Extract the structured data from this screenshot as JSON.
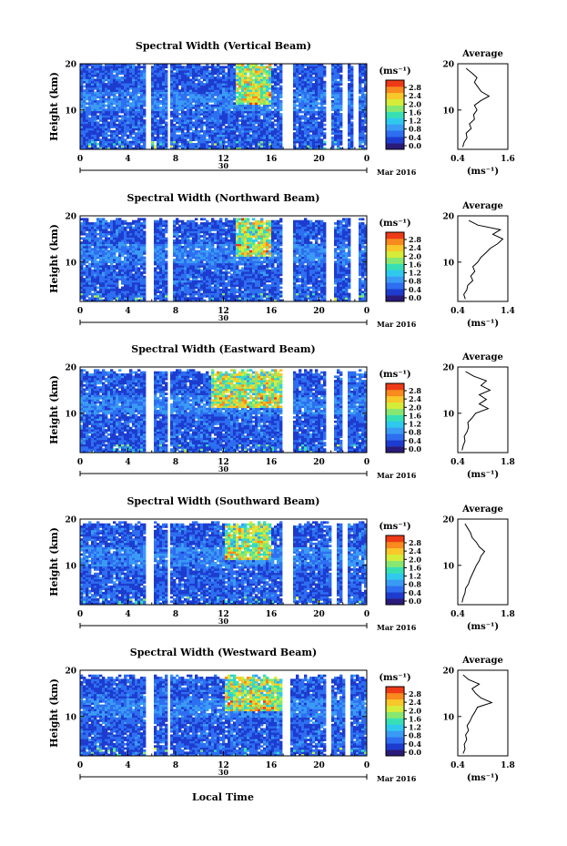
{
  "figure": {
    "xlabel": "Local Time",
    "date_label": "Mar 2016",
    "day_label": "30"
  },
  "colors": {
    "scale": [
      "#2a1a7a",
      "#1d3ccf",
      "#2e6ef0",
      "#3a9bf5",
      "#2fc9ee",
      "#37e0b4",
      "#86e870",
      "#d6ec3a",
      "#f8c72a",
      "#f88a1e",
      "#ee3a16"
    ],
    "missing": "#ffffff"
  },
  "chart_data": [
    {
      "type": "heatmap",
      "title": "Spectral Width (Vertical Beam)",
      "ylabel": "Height (km)",
      "xlim": [
        0,
        24
      ],
      "ylim": [
        1.5,
        20
      ],
      "xticks": [
        "0",
        "4",
        "8",
        "12",
        "16",
        "20",
        "0"
      ],
      "yticks": [
        "10",
        "20"
      ],
      "colorbar": {
        "unit": "(ms⁻¹)",
        "ticks": [
          "0.0",
          "0.4",
          "0.8",
          "1.2",
          "1.6",
          "2.0",
          "2.4",
          "2.8"
        ]
      },
      "gaps": [
        [
          5.6,
          5.85
        ],
        [
          7.2,
          7.55
        ],
        [
          17.0,
          17.8
        ],
        [
          20.5,
          21.0
        ],
        [
          22.0,
          22.4
        ],
        [
          22.8,
          23.2
        ]
      ],
      "top_km": 19.5,
      "bright_km": [
        13,
        16
      ]
    },
    {
      "type": "heatmap",
      "title": "Spectral Width (Northward Beam)",
      "ylabel": "Height (km)",
      "xlim": [
        0,
        24
      ],
      "ylim": [
        1.5,
        20
      ],
      "xticks": [
        "0",
        "4",
        "8",
        "12",
        "16",
        "20",
        "0"
      ],
      "yticks": [
        "10",
        "20"
      ],
      "colorbar": {
        "unit": "(ms⁻¹)",
        "ticks": [
          "0.0",
          "0.4",
          "0.8",
          "1.2",
          "1.6",
          "2.0",
          "2.4",
          "2.8"
        ]
      },
      "gaps": [
        [
          5.6,
          6.1
        ],
        [
          7.3,
          7.7
        ],
        [
          17.0,
          17.8
        ],
        [
          20.5,
          21.2
        ],
        [
          22.6,
          23.2
        ]
      ],
      "top_km": 18.5,
      "bright_km": [
        13,
        16
      ]
    },
    {
      "type": "heatmap",
      "title": "Spectral Width (Eastward Beam)",
      "ylabel": "Height (km)",
      "xlim": [
        0,
        24
      ],
      "ylim": [
        1.5,
        20
      ],
      "xticks": [
        "0",
        "4",
        "8",
        "12",
        "16",
        "20",
        "0"
      ],
      "yticks": [
        "10",
        "20"
      ],
      "colorbar": {
        "unit": "(ms⁻¹)",
        "ticks": [
          "0.0",
          "0.4",
          "0.8",
          "1.2",
          "1.6",
          "2.0",
          "2.4",
          "2.8"
        ]
      },
      "gaps": [
        [
          5.6,
          6.2
        ],
        [
          7.3,
          7.6
        ],
        [
          17.0,
          17.8
        ],
        [
          20.6,
          21.2
        ],
        [
          22.0,
          22.4
        ]
      ],
      "top_km": 18.5,
      "bright_km": [
        11,
        17
      ]
    },
    {
      "type": "heatmap",
      "title": "Spectral Width (Southward Beam)",
      "ylabel": "Height (km)",
      "xlim": [
        0,
        24
      ],
      "ylim": [
        1.5,
        20
      ],
      "xticks": [
        "0",
        "4",
        "8",
        "12",
        "16",
        "20",
        "0"
      ],
      "yticks": [
        "10",
        "20"
      ],
      "colorbar": {
        "unit": "(ms⁻¹)",
        "ticks": [
          "0.0",
          "0.4",
          "0.8",
          "1.2",
          "1.6",
          "2.0",
          "2.4",
          "2.8"
        ]
      },
      "gaps": [
        [
          5.6,
          6.2
        ],
        [
          7.3,
          7.6
        ],
        [
          17.0,
          17.8
        ],
        [
          21.0,
          21.4
        ],
        [
          22.0,
          22.4
        ]
      ],
      "top_km": 18.5,
      "bright_km": [
        12,
        16
      ]
    },
    {
      "type": "heatmap",
      "title": "Spectral Width (Westward Beam)",
      "ylabel": "Height (km)",
      "xlim": [
        0,
        24
      ],
      "ylim": [
        1.5,
        20
      ],
      "xticks": [
        "0",
        "4",
        "8",
        "12",
        "16",
        "20",
        "0"
      ],
      "yticks": [
        "10",
        "20"
      ],
      "colorbar": {
        "unit": "(ms⁻¹)",
        "ticks": [
          "0.0",
          "0.4",
          "0.8",
          "1.2",
          "1.6",
          "2.0",
          "2.4",
          "2.8"
        ]
      },
      "gaps": [
        [
          5.6,
          6.1
        ],
        [
          7.3,
          7.6
        ],
        [
          17.0,
          17.7
        ],
        [
          20.6,
          21.1
        ],
        [
          22.2,
          22.6
        ]
      ],
      "top_km": 18.0,
      "bright_km": [
        12,
        17
      ]
    },
    {
      "type": "line",
      "title": "Average",
      "xlabel": "(ms⁻¹)",
      "xlim": [
        0.4,
        1.6
      ],
      "ylim": [
        1.5,
        20
      ],
      "xticks": [
        "0.4",
        "1.6"
      ],
      "yticks": [
        "10",
        "20"
      ],
      "height": [
        2,
        3,
        4,
        5,
        6,
        7,
        8,
        9,
        10,
        11,
        12,
        13,
        14,
        15,
        16,
        17,
        18,
        19
      ],
      "width": [
        0.52,
        0.55,
        0.62,
        0.6,
        0.72,
        0.68,
        0.8,
        0.78,
        0.86,
        0.8,
        0.95,
        1.15,
        0.96,
        0.88,
        0.8,
        0.86,
        0.74,
        0.6
      ]
    },
    {
      "type": "line",
      "title": "Average",
      "xlabel": "(ms⁻¹)",
      "xlim": [
        0.4,
        1.4
      ],
      "ylim": [
        1.5,
        20
      ],
      "xticks": [
        "0.4",
        "1.4"
      ],
      "yticks": [
        "10",
        "20"
      ],
      "height": [
        2,
        3,
        4,
        5,
        6,
        7,
        8,
        9,
        10,
        11,
        12,
        13,
        14,
        15,
        16,
        17,
        18,
        19
      ],
      "width": [
        0.55,
        0.52,
        0.58,
        0.6,
        0.7,
        0.66,
        0.74,
        0.7,
        0.8,
        0.86,
        0.96,
        1.05,
        1.2,
        1.3,
        1.1,
        1.25,
        0.8,
        0.62
      ]
    },
    {
      "type": "line",
      "title": "Average",
      "xlabel": "(ms⁻¹)",
      "xlim": [
        0.4,
        1.8
      ],
      "ylim": [
        1.5,
        20
      ],
      "xticks": [
        "0.4",
        "1.8"
      ],
      "yticks": [
        "10",
        "20"
      ],
      "height": [
        2,
        3,
        4,
        5,
        6,
        7,
        8,
        9,
        10,
        11,
        12,
        13,
        14,
        15,
        16,
        17,
        18,
        19
      ],
      "width": [
        0.52,
        0.55,
        0.6,
        0.58,
        0.66,
        0.7,
        0.68,
        0.8,
        0.9,
        1.25,
        1.0,
        1.2,
        1.0,
        1.3,
        1.05,
        1.2,
        0.85,
        0.62
      ]
    },
    {
      "type": "line",
      "title": "Average",
      "xlabel": "(ms⁻¹)",
      "xlim": [
        0.4,
        1.8
      ],
      "ylim": [
        1.5,
        20
      ],
      "xticks": [
        "0.4",
        "1.8"
      ],
      "yticks": [
        "10",
        "20"
      ],
      "height": [
        2,
        3,
        4,
        5,
        6,
        7,
        8,
        9,
        10,
        11,
        12,
        13,
        14,
        15,
        16,
        17,
        18,
        19
      ],
      "width": [
        0.52,
        0.55,
        0.6,
        0.62,
        0.7,
        0.74,
        0.8,
        0.86,
        0.92,
        1.0,
        1.05,
        1.15,
        1.0,
        0.92,
        0.8,
        0.76,
        0.68,
        0.6
      ]
    },
    {
      "type": "line",
      "title": "Average",
      "xlabel": "(ms⁻¹)",
      "xlim": [
        0.4,
        1.8
      ],
      "ylim": [
        1.5,
        20
      ],
      "xticks": [
        "0.4",
        "1.8"
      ],
      "yticks": [
        "10",
        "20"
      ],
      "height": [
        2,
        3,
        4,
        5,
        6,
        7,
        8,
        9,
        10,
        11,
        12,
        13,
        14,
        15,
        16,
        17,
        18,
        19
      ],
      "width": [
        0.55,
        0.6,
        0.58,
        0.65,
        0.62,
        0.7,
        0.66,
        0.74,
        0.8,
        0.88,
        0.95,
        1.35,
        1.05,
        0.9,
        0.8,
        1.0,
        0.7,
        0.55
      ]
    }
  ]
}
